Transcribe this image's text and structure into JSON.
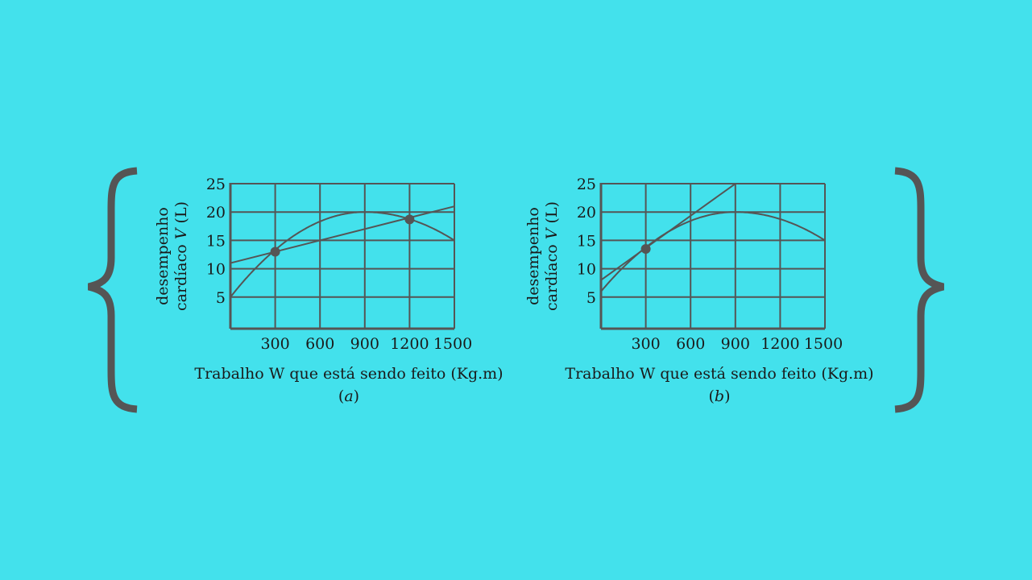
{
  "colors": {
    "background": "#43e1ec",
    "ink": "#555555"
  },
  "chart_data": [
    {
      "type": "line",
      "panel_label": "a",
      "xlabel": "Trabalho W que está sendo feito (Kg.m)",
      "ylabel_line1": "desempenho",
      "ylabel_line2_prefix": "cardíaco ",
      "ylabel_var": "V",
      "ylabel_unit": " (L)",
      "xticks": [
        300,
        600,
        900,
        1200,
        1500
      ],
      "yticks": [
        5,
        10,
        15,
        20,
        25
      ],
      "xlim": [
        0,
        1500
      ],
      "ylim": [
        0,
        25
      ],
      "grid": true,
      "curve": {
        "start": [
          0,
          5
        ],
        "peak": [
          900,
          20
        ],
        "end": [
          1500,
          15
        ]
      },
      "line": {
        "points": [
          [
            0,
            11
          ],
          [
            1500,
            21
          ]
        ]
      },
      "markers": [
        [
          300,
          13
        ],
        [
          1200,
          18.7
        ]
      ]
    },
    {
      "type": "line",
      "panel_label": "b",
      "xlabel": "Trabalho W que está sendo feito (Kg.m)",
      "ylabel_line1": "desempenho",
      "ylabel_line2_prefix": "cardíaco ",
      "ylabel_var": "V",
      "ylabel_unit": " (L)",
      "xticks": [
        300,
        600,
        900,
        1200,
        1500
      ],
      "yticks": [
        5,
        10,
        15,
        20,
        25
      ],
      "xlim": [
        0,
        1500
      ],
      "ylim": [
        0,
        25
      ],
      "grid": true,
      "curve": {
        "start": [
          0,
          6
        ],
        "peak": [
          900,
          20
        ],
        "end": [
          1500,
          15
        ]
      },
      "line": {
        "points": [
          [
            0,
            8
          ],
          [
            900,
            25
          ]
        ]
      },
      "markers": [
        [
          300,
          13.5
        ]
      ]
    }
  ]
}
